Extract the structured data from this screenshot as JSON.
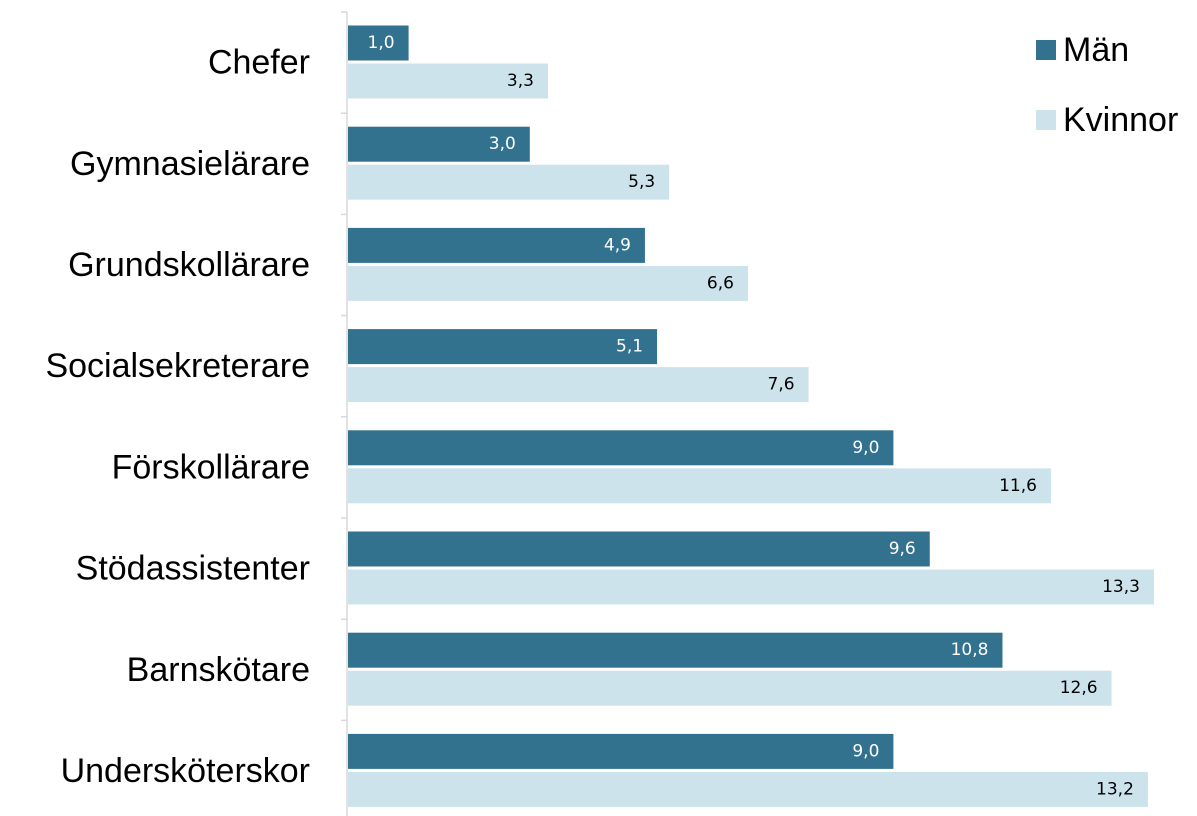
{
  "chart_data": {
    "type": "bar",
    "orientation": "horizontal",
    "categories": [
      "Chefer",
      "Gymnasielärare",
      "Grundskollärare",
      "Socialsekreterare",
      "Förskollärare",
      "Stödassistenter",
      "Barnskötare",
      "Undersköterskor"
    ],
    "series": [
      {
        "name": "Män",
        "color": "#33728f",
        "label_color": "#ffffff",
        "values": [
          1.0,
          3.0,
          4.9,
          5.1,
          9.0,
          9.6,
          10.8,
          9.0
        ],
        "labels": [
          "1,0",
          "3,0",
          "4,9",
          "5,1",
          "9,0",
          "9,6",
          "10,8",
          "9,0"
        ]
      },
      {
        "name": "Kvinnor",
        "color": "#cde3ec",
        "label_color": "#000000",
        "values": [
          3.3,
          5.3,
          6.6,
          7.6,
          11.6,
          13.3,
          12.6,
          13.2
        ],
        "labels": [
          "3,3",
          "5,3",
          "6,6",
          "7,6",
          "11,6",
          "13,3",
          "12,6",
          "13,2"
        ]
      }
    ],
    "xlim": [
      0,
      13.4
    ],
    "grid": false,
    "legend_position": "top-right",
    "title": "",
    "xlabel": "",
    "ylabel": ""
  }
}
